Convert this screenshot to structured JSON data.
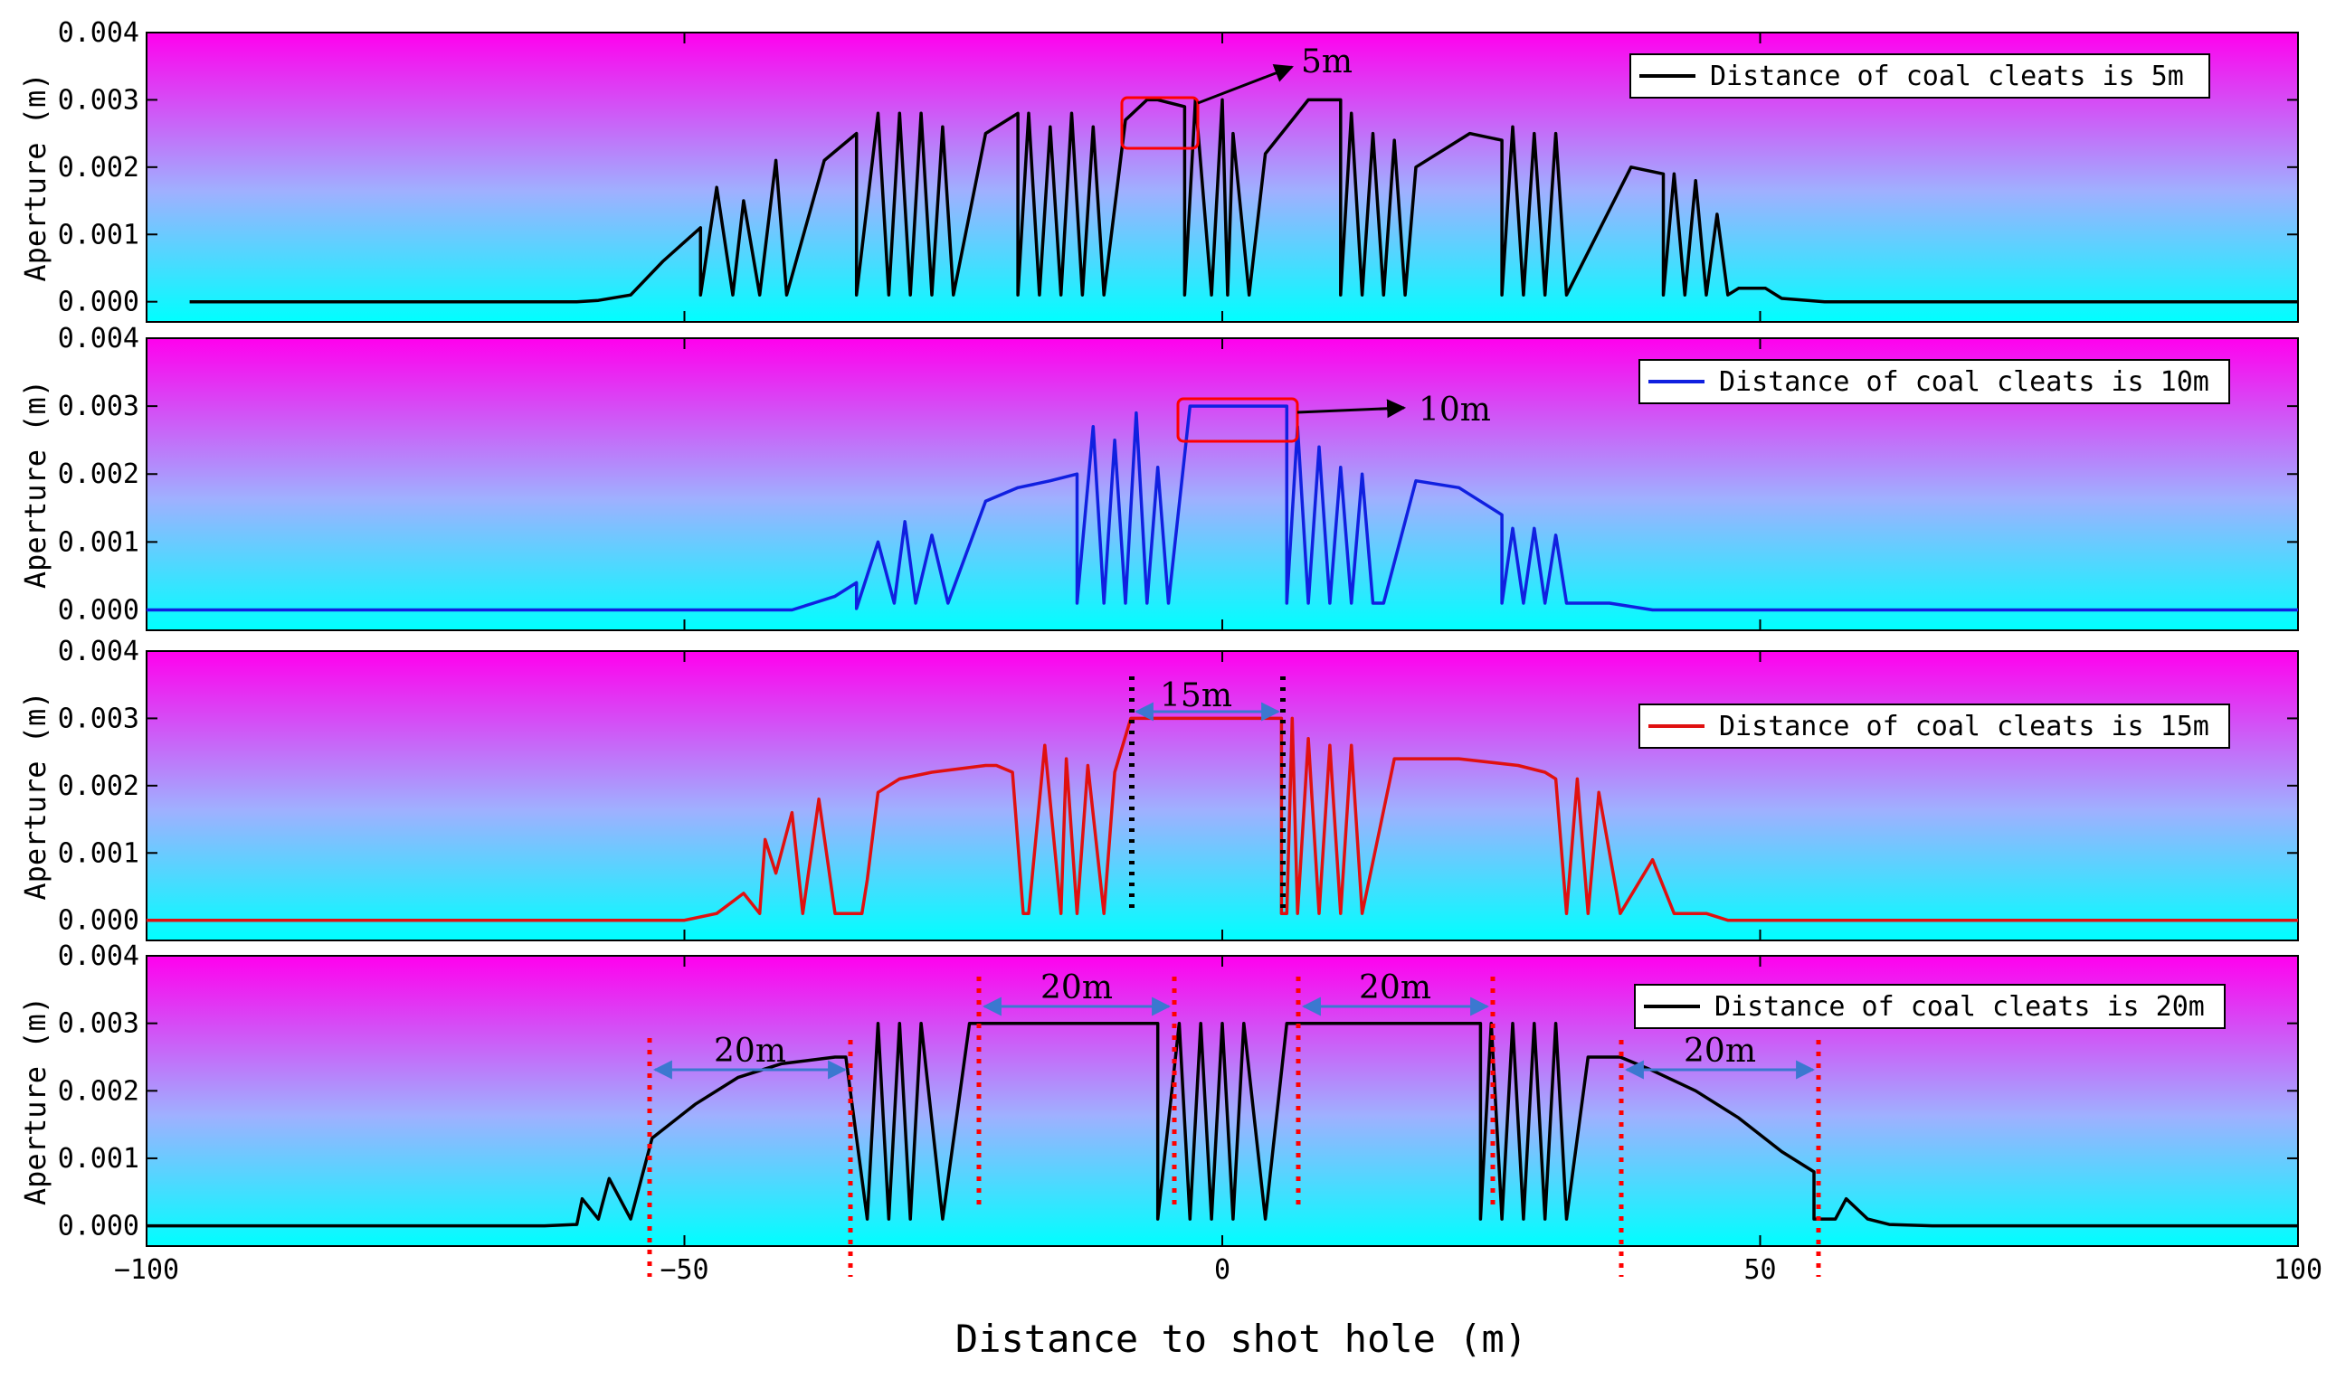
{
  "chart_data": {
    "type": "line",
    "xlabel": "Distance to shot hole (m)",
    "xlim": [
      -100,
      100
    ],
    "xticks": [
      -100,
      -50,
      0,
      50,
      100
    ],
    "xtick_labels": [
      "−100",
      "−50",
      "0",
      "50",
      "100"
    ],
    "background_gradient": [
      "#ff00ee",
      "#00ffff"
    ],
    "panels": [
      {
        "ylabel": "Aperture (m)",
        "ylim": [
          -0.0003,
          0.004
        ],
        "yticks": [
          0.0,
          0.001,
          0.002,
          0.003,
          0.004
        ],
        "ytick_labels": [
          "0.000",
          "0.001",
          "0.002",
          "0.003",
          "0.004"
        ],
        "legend": "Distance of coal cleats is 5m",
        "color": "#000000",
        "annotation": "5m",
        "x": [
          -96,
          -60,
          -58,
          -55,
          -52,
          -48.5,
          -48.5,
          -47,
          -45.5,
          -44.5,
          -43,
          -41.5,
          -40.5,
          -37,
          -34,
          -34,
          -32,
          -31,
          -30,
          -29,
          -28,
          -27,
          -26,
          -25,
          -22,
          -19,
          -19,
          -18,
          -17,
          -16,
          -15,
          -14,
          -13,
          -12,
          -11,
          -9,
          -7,
          -6,
          -3.5,
          -3.5,
          -2.5,
          -1,
          0,
          0.5,
          1,
          2.5,
          4,
          8,
          8,
          11,
          11,
          12,
          13,
          14,
          15,
          16,
          17,
          18,
          23,
          26,
          26,
          27,
          28,
          29,
          30,
          31,
          32,
          38,
          41,
          41,
          42,
          43,
          44,
          45,
          46,
          47,
          48,
          50.5,
          52,
          56,
          100
        ],
        "y": [
          0,
          0,
          2e-05,
          0.0001,
          0.0006,
          0.0011,
          0.0001,
          0.0017,
          0.0001,
          0.0015,
          0.0001,
          0.0021,
          0.0001,
          0.0021,
          0.0025,
          0.0001,
          0.0028,
          0.0001,
          0.0028,
          0.0001,
          0.0028,
          0.0001,
          0.0026,
          0.0001,
          0.0025,
          0.0028,
          0.0001,
          0.0028,
          0.0001,
          0.0026,
          0.0001,
          0.0028,
          0.0001,
          0.0026,
          0.0001,
          0.0027,
          0.003,
          0.003,
          0.0029,
          0.0001,
          0.003,
          0.0001,
          0.003,
          0.0001,
          0.0025,
          0.0001,
          0.0022,
          0.003,
          0.003,
          0.003,
          0.0001,
          0.0028,
          0.0001,
          0.0025,
          0.0001,
          0.0024,
          0.0001,
          0.002,
          0.0025,
          0.0024,
          0.0001,
          0.0026,
          0.0001,
          0.0025,
          0.0001,
          0.0025,
          0.0001,
          0.002,
          0.0019,
          0.0001,
          0.0019,
          0.0001,
          0.0018,
          0.0001,
          0.0013,
          0.0001,
          0.0002,
          0.0002,
          5e-05,
          0,
          0
        ]
      },
      {
        "ylabel": "Aperture (m)",
        "ylim": [
          -0.0003,
          0.004
        ],
        "yticks": [
          0.0,
          0.001,
          0.002,
          0.003,
          0.004
        ],
        "ytick_labels": [
          "0.000",
          "0.001",
          "0.002",
          "0.003",
          "0.004"
        ],
        "legend": "Distance of coal cleats is 10m",
        "color": "#1020e0",
        "annotation": "10m",
        "x": [
          -100,
          -40,
          -38,
          -36,
          -34,
          -34,
          -32,
          -30.5,
          -29.5,
          -28.5,
          -27,
          -25.5,
          -22,
          -19,
          -16,
          -13.5,
          -13.5,
          -12,
          -11,
          -10,
          -9,
          -8,
          -7,
          -6,
          -5,
          -3,
          3,
          6,
          6,
          7,
          8,
          9,
          10,
          11,
          12,
          13,
          14,
          15,
          18,
          22,
          26,
          26,
          27,
          28,
          29,
          30,
          31,
          32,
          33,
          36,
          40,
          100
        ],
        "y": [
          0,
          0,
          0.0001,
          0.0002,
          0.0004,
          2e-05,
          0.001,
          0.0001,
          0.0013,
          0.0001,
          0.0011,
          0.0001,
          0.0016,
          0.0018,
          0.0019,
          0.002,
          0.0001,
          0.0027,
          0.0001,
          0.0025,
          0.0001,
          0.0029,
          0.0001,
          0.0021,
          0.0001,
          0.003,
          0.003,
          0.003,
          0.0001,
          0.0027,
          0.0001,
          0.0024,
          0.0001,
          0.0021,
          0.0001,
          0.002,
          0.0001,
          0.0001,
          0.0019,
          0.0018,
          0.0014,
          0.0001,
          0.0012,
          0.0001,
          0.0012,
          0.0001,
          0.0011,
          0.0001,
          0.0001,
          0.0001,
          0,
          0
        ]
      },
      {
        "ylabel": "Aperture (m)",
        "ylim": [
          -0.0003,
          0.004
        ],
        "yticks": [
          0.0,
          0.001,
          0.002,
          0.003,
          0.004
        ],
        "ytick_labels": [
          "0.000",
          "0.001",
          "0.002",
          "0.003",
          "0.004"
        ],
        "legend": "Distance of coal cleats is 15m",
        "color": "#e01010",
        "annotation": "15m",
        "x": [
          -100,
          -50,
          -47,
          -44.5,
          -43,
          -42.5,
          -41.5,
          -40,
          -39,
          -37.5,
          -36,
          -33.5,
          -33,
          -32,
          -30,
          -27,
          -22,
          -21,
          -19.5,
          -18.5,
          -18,
          -16.5,
          -15,
          -14.5,
          -13.5,
          -12.5,
          -11,
          -10,
          -8.5,
          -8.5,
          5.5,
          5.5,
          6,
          6.5,
          7,
          8,
          9,
          10,
          11,
          12,
          13,
          16,
          22,
          27.5,
          30,
          31,
          32,
          33,
          34,
          35,
          37,
          40,
          42,
          45,
          47,
          100
        ],
        "y": [
          0,
          0,
          0.0001,
          0.0004,
          0.0001,
          0.0012,
          0.0007,
          0.0016,
          0.0001,
          0.0018,
          0.0001,
          0.0001,
          0.0006,
          0.0019,
          0.0021,
          0.0022,
          0.0023,
          0.0023,
          0.0022,
          0.0001,
          0.0001,
          0.0026,
          0.0001,
          0.0024,
          0.0001,
          0.0023,
          0.0001,
          0.0022,
          0.003,
          0.003,
          0.003,
          0.0001,
          0.0001,
          0.003,
          0.0001,
          0.0027,
          0.0001,
          0.0026,
          0.0001,
          0.0026,
          0.0001,
          0.0024,
          0.0024,
          0.0023,
          0.0022,
          0.0021,
          0.0001,
          0.0021,
          0.0001,
          0.0019,
          0.0001,
          0.0009,
          0.0001,
          0.0001,
          0,
          0
        ]
      },
      {
        "ylabel": "Aperture (m)",
        "ylim": [
          -0.0003,
          0.004
        ],
        "yticks": [
          0.0,
          0.001,
          0.002,
          0.003,
          0.004
        ],
        "ytick_labels": [
          "0.000",
          "0.001",
          "0.002",
          "0.003",
          "0.004"
        ],
        "legend": "Distance of coal cleats is 20m",
        "color": "#000000",
        "annotation": "20m",
        "x": [
          -100,
          -63,
          -60,
          -59.5,
          -58,
          -57,
          -55,
          -53,
          -49,
          -45,
          -41,
          -36,
          -35,
          -33,
          -32,
          -31,
          -30,
          -29,
          -28,
          -26,
          -23.5,
          -23.5,
          -22,
          -6,
          -6,
          -4,
          -3,
          -2,
          -1,
          0,
          1,
          2,
          4,
          6,
          6,
          8,
          24,
          24,
          25,
          26,
          27,
          28,
          29,
          30,
          31,
          32,
          34,
          37,
          37,
          40,
          44,
          48,
          52,
          55,
          55,
          57,
          58,
          60,
          62,
          66,
          100
        ],
        "y": [
          0,
          0,
          2e-05,
          0.0004,
          0.0001,
          0.0007,
          0.0001,
          0.0013,
          0.0018,
          0.0022,
          0.0024,
          0.0025,
          0.0025,
          0.0001,
          0.003,
          0.0001,
          0.003,
          0.0001,
          0.003,
          0.0001,
          0.003,
          0.003,
          0.003,
          0.003,
          0.0001,
          0.003,
          0.0001,
          0.003,
          0.0001,
          0.003,
          0.0001,
          0.003,
          0.0001,
          0.003,
          0.003,
          0.003,
          0.003,
          0.0001,
          0.003,
          0.0001,
          0.003,
          0.0001,
          0.003,
          0.0001,
          0.003,
          0.0001,
          0.0025,
          0.0025,
          0.0025,
          0.0023,
          0.002,
          0.0016,
          0.0011,
          0.0008,
          0.0001,
          0.0001,
          0.0004,
          0.0001,
          2e-05,
          0,
          0
        ]
      }
    ]
  }
}
